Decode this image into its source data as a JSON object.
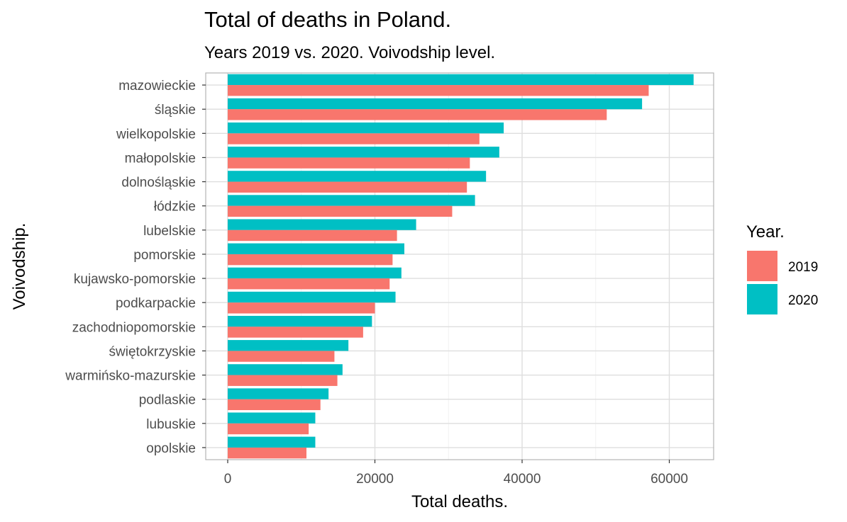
{
  "chart_data": {
    "type": "bar",
    "orientation": "horizontal",
    "title": "Total of deaths in Poland.",
    "subtitle": "Years 2019 vs. 2020. Voivodship level.",
    "xlabel": "Total deaths.",
    "ylabel": "Voivodship.",
    "xlim": [
      0,
      66000
    ],
    "xticks": [
      0,
      20000,
      40000,
      60000
    ],
    "xtick_labels": [
      "0",
      "20000",
      "40000",
      "60000"
    ],
    "grid": true,
    "legend_title": "Year.",
    "legend_position": "right",
    "categories": [
      "mazowieckie",
      "śląskie",
      "wielkopolskie",
      "małopolskie",
      "dolnośląskie",
      "łódzkie",
      "lubelskie",
      "pomorskie",
      "kujawsko-pomorskie",
      "podkarpackie",
      "zachodniopomorskie",
      "świętokrzyskie",
      "warmińsko-mazurskie",
      "podlaskie",
      "lubuskie",
      "opolskie"
    ],
    "series": [
      {
        "name": "2019",
        "color": "#F8766D",
        "values": [
          57200,
          51500,
          34200,
          32900,
          32500,
          30500,
          23000,
          22400,
          22000,
          20000,
          18400,
          14500,
          14900,
          12600,
          11000,
          10700
        ]
      },
      {
        "name": "2020",
        "color": "#00BFC4",
        "values": [
          63300,
          56300,
          37500,
          36900,
          35100,
          33600,
          25600,
          24000,
          23600,
          22800,
          19600,
          16400,
          15600,
          13700,
          11900,
          11900
        ]
      }
    ]
  }
}
